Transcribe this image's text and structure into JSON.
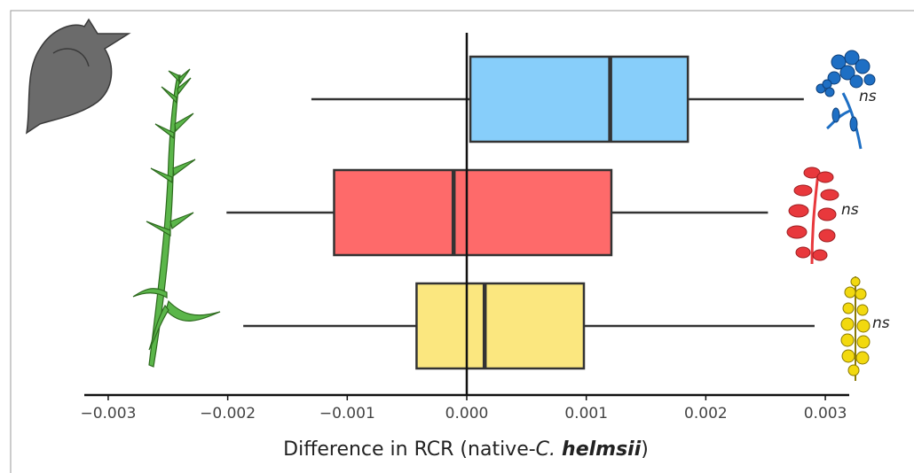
{
  "chart_data": {
    "type": "boxplot",
    "xlabel_parts": [
      "Difference in RCR (native-",
      "C. ",
      "helmsii",
      ")"
    ],
    "xlim": [
      -0.0032,
      0.0032
    ],
    "xticks": [
      {
        "value": -0.003,
        "label": "−0.003"
      },
      {
        "value": -0.002,
        "label": "−0.002"
      },
      {
        "value": -0.001,
        "label": "−0.001"
      },
      {
        "value": 0,
        "label": "0.000"
      },
      0.001,
      0.002,
      0.003
    ],
    "reference_line": 0,
    "boxes": [
      {
        "color": "#87cefa",
        "whisker_low": -0.0013,
        "q1": 3e-05,
        "median": 0.0012,
        "q3": 0.00185,
        "whisker_high": 0.00282,
        "annotation": "ns"
      },
      {
        "color": "#fe6a6a",
        "whisker_low": -0.00201,
        "q1": -0.00111,
        "median": -0.00011,
        "q3": 0.00121,
        "whisker_high": 0.00252,
        "annotation": "ns"
      },
      {
        "color": "#fbe77f",
        "whisker_low": -0.00187,
        "q1": -0.00042,
        "median": 0.00015,
        "q3": 0.00098,
        "whisker_high": 0.00291,
        "annotation": "ns"
      }
    ]
  }
}
